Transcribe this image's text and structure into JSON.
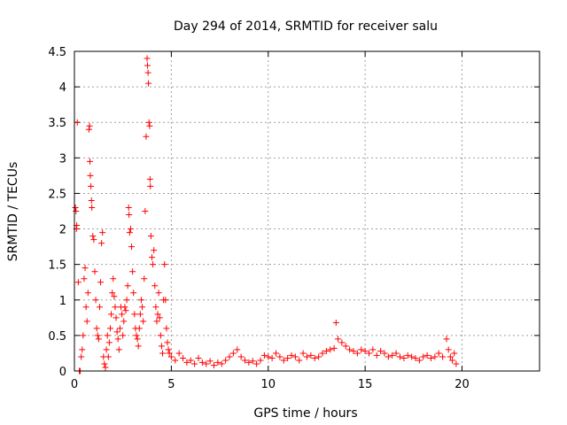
{
  "chart_data": {
    "type": "scatter",
    "title": "Day 294 of 2014, SRMTID for receiver salu",
    "xlabel": "GPS time / hours",
    "ylabel": "SRMTID / TECUs",
    "xlim": [
      0,
      24
    ],
    "ylim": [
      0,
      4.5
    ],
    "xticks": [
      0,
      5,
      10,
      15,
      20
    ],
    "yticks": [
      0,
      0.5,
      1,
      1.5,
      2,
      2.5,
      3,
      3.5,
      4,
      4.5
    ],
    "xtick_labels": [
      "0",
      "5",
      "10",
      "15",
      "20"
    ],
    "ytick_labels": [
      "0",
      "0.5",
      "1",
      "1.5",
      "2",
      "2.5",
      "3",
      "3.5",
      "4",
      "4.5"
    ],
    "grid": true,
    "marker": "+",
    "color": "#ff0000",
    "series": [
      {
        "name": "salu",
        "points": [
          [
            0.05,
            2.3
          ],
          [
            0.08,
            2.25
          ],
          [
            0.1,
            2.0
          ],
          [
            0.12,
            2.05
          ],
          [
            0.15,
            3.5
          ],
          [
            0.2,
            1.25
          ],
          [
            0.25,
            0.0
          ],
          [
            0.3,
            0.0
          ],
          [
            0.35,
            0.2
          ],
          [
            0.4,
            0.3
          ],
          [
            0.45,
            0.5
          ],
          [
            0.5,
            1.3
          ],
          [
            0.55,
            1.45
          ],
          [
            0.6,
            0.9
          ],
          [
            0.65,
            0.7
          ],
          [
            0.7,
            1.1
          ],
          [
            0.75,
            3.4
          ],
          [
            0.78,
            3.45
          ],
          [
            0.8,
            2.95
          ],
          [
            0.82,
            2.75
          ],
          [
            0.85,
            2.6
          ],
          [
            0.88,
            2.4
          ],
          [
            0.9,
            2.3
          ],
          [
            0.95,
            1.9
          ],
          [
            1.0,
            1.85
          ],
          [
            1.05,
            1.4
          ],
          [
            1.1,
            1.0
          ],
          [
            1.15,
            0.6
          ],
          [
            1.2,
            0.5
          ],
          [
            1.25,
            0.45
          ],
          [
            1.3,
            0.9
          ],
          [
            1.35,
            1.25
          ],
          [
            1.4,
            1.8
          ],
          [
            1.45,
            1.95
          ],
          [
            1.5,
            0.2
          ],
          [
            1.55,
            0.1
          ],
          [
            1.6,
            0.05
          ],
          [
            1.65,
            0.3
          ],
          [
            1.7,
            0.5
          ],
          [
            1.75,
            0.2
          ],
          [
            1.8,
            0.4
          ],
          [
            1.85,
            0.6
          ],
          [
            1.9,
            0.8
          ],
          [
            1.95,
            1.1
          ],
          [
            2.0,
            1.3
          ],
          [
            2.05,
            1.05
          ],
          [
            2.1,
            0.9
          ],
          [
            2.15,
            0.75
          ],
          [
            2.2,
            0.55
          ],
          [
            2.25,
            0.45
          ],
          [
            2.3,
            0.3
          ],
          [
            2.35,
            0.6
          ],
          [
            2.4,
            0.9
          ],
          [
            2.45,
            0.8
          ],
          [
            2.5,
            0.5
          ],
          [
            2.55,
            0.7
          ],
          [
            2.6,
            0.9
          ],
          [
            2.65,
            0.85
          ],
          [
            2.7,
            1.0
          ],
          [
            2.75,
            1.2
          ],
          [
            2.8,
            2.3
          ],
          [
            2.82,
            2.2
          ],
          [
            2.85,
            1.95
          ],
          [
            2.9,
            2.0
          ],
          [
            2.95,
            1.75
          ],
          [
            3.0,
            1.4
          ],
          [
            3.05,
            1.1
          ],
          [
            3.1,
            0.8
          ],
          [
            3.15,
            0.6
          ],
          [
            3.2,
            0.5
          ],
          [
            3.25,
            0.45
          ],
          [
            3.3,
            0.35
          ],
          [
            3.35,
            0.6
          ],
          [
            3.4,
            0.8
          ],
          [
            3.45,
            1.0
          ],
          [
            3.5,
            0.9
          ],
          [
            3.55,
            0.7
          ],
          [
            3.6,
            1.3
          ],
          [
            3.65,
            2.25
          ],
          [
            3.7,
            3.3
          ],
          [
            3.75,
            4.4
          ],
          [
            3.77,
            4.3
          ],
          [
            3.8,
            4.2
          ],
          [
            3.82,
            4.05
          ],
          [
            3.85,
            3.5
          ],
          [
            3.88,
            3.45
          ],
          [
            3.9,
            2.7
          ],
          [
            3.92,
            2.6
          ],
          [
            3.95,
            1.9
          ],
          [
            4.0,
            1.6
          ],
          [
            4.05,
            1.5
          ],
          [
            4.1,
            1.7
          ],
          [
            4.15,
            1.2
          ],
          [
            4.2,
            0.9
          ],
          [
            4.25,
            0.7
          ],
          [
            4.3,
            0.8
          ],
          [
            4.35,
            1.1
          ],
          [
            4.4,
            0.75
          ],
          [
            4.45,
            0.5
          ],
          [
            4.5,
            0.35
          ],
          [
            4.55,
            0.25
          ],
          [
            4.6,
            1.0
          ],
          [
            4.65,
            1.5
          ],
          [
            4.7,
            1.0
          ],
          [
            4.75,
            0.6
          ],
          [
            4.8,
            0.4
          ],
          [
            4.85,
            0.3
          ],
          [
            4.9,
            0.25
          ],
          [
            5.0,
            0.2
          ],
          [
            5.2,
            0.15
          ],
          [
            5.4,
            0.25
          ],
          [
            5.6,
            0.18
          ],
          [
            5.8,
            0.12
          ],
          [
            6.0,
            0.15
          ],
          [
            6.2,
            0.1
          ],
          [
            6.4,
            0.18
          ],
          [
            6.6,
            0.12
          ],
          [
            6.8,
            0.1
          ],
          [
            7.0,
            0.14
          ],
          [
            7.2,
            0.08
          ],
          [
            7.4,
            0.12
          ],
          [
            7.6,
            0.1
          ],
          [
            7.8,
            0.15
          ],
          [
            8.0,
            0.2
          ],
          [
            8.2,
            0.25
          ],
          [
            8.4,
            0.3
          ],
          [
            8.6,
            0.2
          ],
          [
            8.8,
            0.15
          ],
          [
            9.0,
            0.12
          ],
          [
            9.2,
            0.14
          ],
          [
            9.4,
            0.1
          ],
          [
            9.6,
            0.15
          ],
          [
            9.8,
            0.22
          ],
          [
            10.0,
            0.2
          ],
          [
            10.2,
            0.18
          ],
          [
            10.4,
            0.25
          ],
          [
            10.6,
            0.2
          ],
          [
            10.8,
            0.15
          ],
          [
            11.0,
            0.18
          ],
          [
            11.2,
            0.22
          ],
          [
            11.4,
            0.2
          ],
          [
            11.6,
            0.15
          ],
          [
            11.8,
            0.25
          ],
          [
            12.0,
            0.2
          ],
          [
            12.2,
            0.22
          ],
          [
            12.4,
            0.18
          ],
          [
            12.6,
            0.2
          ],
          [
            12.8,
            0.25
          ],
          [
            13.0,
            0.28
          ],
          [
            13.2,
            0.3
          ],
          [
            13.4,
            0.32
          ],
          [
            13.5,
            0.68
          ],
          [
            13.6,
            0.45
          ],
          [
            13.8,
            0.4
          ],
          [
            14.0,
            0.35
          ],
          [
            14.2,
            0.3
          ],
          [
            14.4,
            0.28
          ],
          [
            14.6,
            0.25
          ],
          [
            14.8,
            0.3
          ],
          [
            15.0,
            0.28
          ],
          [
            15.2,
            0.25
          ],
          [
            15.4,
            0.3
          ],
          [
            15.6,
            0.22
          ],
          [
            15.8,
            0.28
          ],
          [
            16.0,
            0.25
          ],
          [
            16.2,
            0.2
          ],
          [
            16.4,
            0.22
          ],
          [
            16.6,
            0.25
          ],
          [
            16.8,
            0.2
          ],
          [
            17.0,
            0.18
          ],
          [
            17.2,
            0.22
          ],
          [
            17.4,
            0.2
          ],
          [
            17.6,
            0.18
          ],
          [
            17.8,
            0.15
          ],
          [
            18.0,
            0.2
          ],
          [
            18.2,
            0.22
          ],
          [
            18.4,
            0.18
          ],
          [
            18.6,
            0.2
          ],
          [
            18.8,
            0.25
          ],
          [
            19.0,
            0.2
          ],
          [
            19.2,
            0.45
          ],
          [
            19.3,
            0.3
          ],
          [
            19.4,
            0.2
          ],
          [
            19.5,
            0.15
          ],
          [
            19.6,
            0.25
          ],
          [
            19.7,
            0.1
          ]
        ]
      }
    ]
  }
}
